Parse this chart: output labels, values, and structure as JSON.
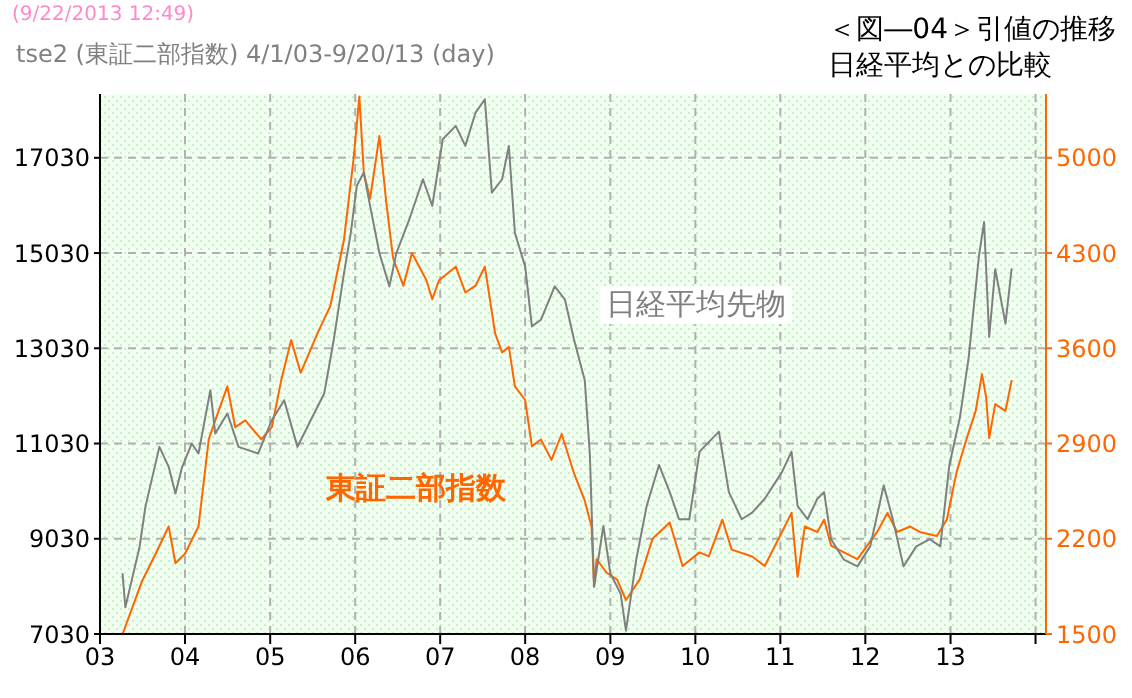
{
  "chart_data": {
    "type": "line",
    "title": "tse2 (東証二部指数) 4/1/03-9/20/13 (day)",
    "subtitle": "＜図―04＞引値の推移",
    "annotations": [
      "(9/22/2013 12:49)",
      "日経平均との比較"
    ],
    "xlim": [
      "2003-01-01",
      "2014-02-15"
    ],
    "xticks": [
      {
        "value": "2003-01-01",
        "label": "03"
      },
      {
        "value": "2004-01-01",
        "label": "04"
      },
      {
        "value": "2005-01-01",
        "label": "05"
      },
      {
        "value": "2006-01-01",
        "label": "06"
      },
      {
        "value": "2007-01-01",
        "label": "07"
      },
      {
        "value": "2008-01-01",
        "label": "08"
      },
      {
        "value": "2009-01-01",
        "label": "09"
      },
      {
        "value": "2010-01-01",
        "label": "10"
      },
      {
        "value": "2011-01-01",
        "label": "11"
      },
      {
        "value": "2012-01-01",
        "label": "12"
      },
      {
        "value": "2013-01-01",
        "label": "13"
      },
      {
        "value": "2014-01-01",
        "label": null
      }
    ],
    "ylim": [
      7030,
      18370
    ],
    "yticks": [
      7030,
      9030,
      11030,
      13030,
      15030,
      17030
    ],
    "y2lim": [
      1500,
      5469
    ],
    "y2ticks": [
      1500,
      2200,
      2900,
      3600,
      4300,
      5000
    ],
    "grid": true,
    "marker": "none",
    "line_style": "solid",
    "series": [
      {
        "name": "日経平均先物",
        "color": "#808080",
        "x": [
          "2003-04-08",
          "2003-04-20",
          "2003-06-20",
          "2003-07-15",
          "2003-09-13",
          "2003-10-23",
          "2003-11-21",
          "2003-12-20",
          "2004-01-30",
          "2004-02-28",
          "2004-04-19",
          "2004-05-10",
          "2004-07-01",
          "2004-08-18",
          "2004-11-10",
          "2005-01-08",
          "2005-03-02",
          "2005-04-28",
          "2005-06-24",
          "2005-08-21",
          "2005-10-01",
          "2005-11-14",
          "2005-12-13",
          "2006-01-08",
          "2006-02-07",
          "2006-03-06",
          "2006-04-15",
          "2006-05-28",
          "2006-06-27",
          "2006-08-21",
          "2006-10-19",
          "2006-11-28",
          "2007-01-12",
          "2007-03-09",
          "2007-04-19",
          "2007-06-02",
          "2007-07-12",
          "2007-08-11",
          "2007-09-24",
          "2007-10-23",
          "2007-11-18",
          "2008-01-01",
          "2008-01-30",
          "2008-03-09",
          "2008-05-07",
          "2008-06-20",
          "2008-07-29",
          "2008-09-13",
          "2008-10-05",
          "2008-10-23",
          "2008-12-02",
          "2009-01-01",
          "2009-02-14",
          "2009-03-09",
          "2009-04-22",
          "2009-06-06",
          "2009-07-29",
          "2009-09-13",
          "2009-10-23",
          "2009-12-06",
          "2010-01-19",
          "2010-04-12",
          "2010-05-25",
          "2010-07-19",
          "2010-09-02",
          "2010-10-26",
          "2011-01-08",
          "2011-02-18",
          "2011-03-16",
          "2011-04-28",
          "2011-06-09",
          "2011-07-08",
          "2011-08-07",
          "2011-10-01",
          "2011-11-28",
          "2012-01-22",
          "2012-03-20",
          "2012-04-28",
          "2012-06-13",
          "2012-08-07",
          "2012-10-04",
          "2012-11-18",
          "2012-12-27",
          "2013-02-10",
          "2013-03-20",
          "2013-05-03",
          "2013-05-25",
          "2013-06-16",
          "2013-07-12",
          "2013-08-25",
          "2013-09-20"
        ],
        "values": [
          8290,
          7590,
          8860,
          9700,
          10960,
          10540,
          9980,
          10540,
          11030,
          10820,
          12150,
          11240,
          11660,
          10960,
          10820,
          11520,
          11940,
          10960,
          11520,
          12080,
          13210,
          14610,
          15450,
          16440,
          16720,
          16020,
          15030,
          14330,
          15030,
          15730,
          16580,
          16020,
          17420,
          17700,
          17280,
          17980,
          18260,
          16300,
          16580,
          17280,
          15450,
          14750,
          13490,
          13630,
          14330,
          14050,
          13210,
          12360,
          10800,
          8020,
          9300,
          8300,
          7880,
          7100,
          8590,
          9720,
          10580,
          10010,
          9440,
          9440,
          10860,
          11280,
          10010,
          9440,
          9580,
          9870,
          10430,
          10860,
          9720,
          9440,
          9870,
          10010,
          9020,
          8590,
          8450,
          8870,
          10150,
          9440,
          8450,
          8870,
          9020,
          8870,
          10580,
          11570,
          12840,
          14970,
          15680,
          13270,
          14690,
          13550,
          14690
        ]
      },
      {
        "name": "東証二部指数",
        "color": "#ff6600",
        "axis": "y2",
        "x": [
          "2003-04-08",
          "2003-05-21",
          "2003-07-01",
          "2003-08-28",
          "2003-10-23",
          "2003-11-21",
          "2004-01-01",
          "2004-02-28",
          "2004-04-12",
          "2004-05-10",
          "2004-07-01",
          "2004-08-04",
          "2004-09-16",
          "2004-11-24",
          "2005-01-08",
          "2005-02-18",
          "2005-04-01",
          "2005-05-12",
          "2005-07-23",
          "2005-09-16",
          "2005-11-14",
          "2005-12-25",
          "2006-01-19",
          "2006-02-07",
          "2006-03-06",
          "2006-04-15",
          "2006-05-16",
          "2006-06-13",
          "2006-07-27",
          "2006-09-02",
          "2006-11-03",
          "2006-11-28",
          "2006-12-27",
          "2007-03-09",
          "2007-04-19",
          "2007-06-02",
          "2007-07-12",
          "2007-08-25",
          "2007-09-24",
          "2007-10-23",
          "2007-11-18",
          "2008-01-01",
          "2008-01-30",
          "2008-03-09",
          "2008-04-23",
          "2008-06-06",
          "2008-07-29",
          "2008-09-13",
          "2008-10-12",
          "2008-10-23",
          "2008-11-03",
          "2008-12-16",
          "2009-01-30",
          "2009-03-09",
          "2009-05-07",
          "2009-07-01",
          "2009-09-13",
          "2009-11-07",
          "2010-01-19",
          "2010-02-28",
          "2010-04-27",
          "2010-06-06",
          "2010-09-02",
          "2010-10-26",
          "2011-01-08",
          "2011-02-18",
          "2011-03-16",
          "2011-04-16",
          "2011-06-09",
          "2011-07-08",
          "2011-08-07",
          "2011-10-01",
          "2011-11-28",
          "2012-02-21",
          "2012-04-05",
          "2012-05-16",
          "2012-07-12",
          "2012-08-22",
          "2012-11-03",
          "2012-12-16",
          "2013-01-27",
          "2013-03-12",
          "2013-04-19",
          "2013-05-16",
          "2013-06-03",
          "2013-06-16",
          "2013-07-12",
          "2013-08-25",
          "2013-09-20"
        ],
        "values": [
          1500,
          1700,
          1890,
          2090,
          2290,
          2020,
          2090,
          2290,
          2930,
          3070,
          3320,
          3020,
          3070,
          2930,
          3020,
          3370,
          3660,
          3420,
          3710,
          3910,
          4400,
          4990,
          5450,
          4890,
          4700,
          5160,
          4650,
          4260,
          4060,
          4300,
          4100,
          3960,
          4100,
          4200,
          4010,
          4060,
          4200,
          3710,
          3570,
          3610,
          3320,
          3220,
          2880,
          2930,
          2780,
          2970,
          2680,
          2480,
          2290,
          1850,
          2050,
          1950,
          1900,
          1750,
          1900,
          2200,
          2320,
          2000,
          2100,
          2070,
          2340,
          2120,
          2070,
          2000,
          2250,
          2390,
          1920,
          2290,
          2250,
          2340,
          2150,
          2100,
          2050,
          2250,
          2390,
          2250,
          2290,
          2250,
          2220,
          2340,
          2690,
          2940,
          3140,
          3410,
          3240,
          2940,
          3190,
          3140,
          3360
        ]
      }
    ]
  }
}
